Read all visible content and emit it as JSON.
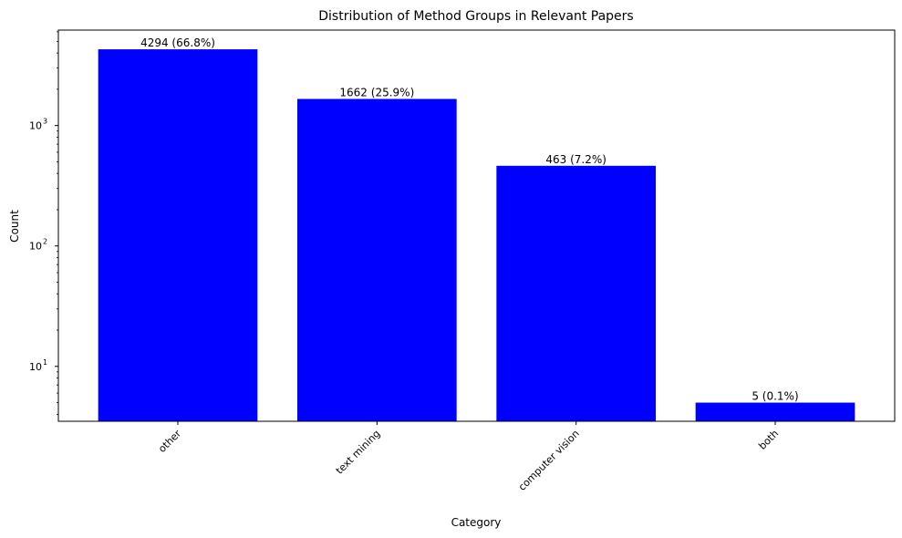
{
  "chart_data": {
    "type": "bar",
    "title": "Distribution of Method Groups in Relevant Papers",
    "xlabel": "Category",
    "ylabel": "Count",
    "yscale": "log",
    "ylim": [
      3.5,
      6200
    ],
    "categories": [
      "other",
      "text mining",
      "computer vision",
      "both"
    ],
    "values": [
      4294,
      1662,
      463,
      5
    ],
    "value_labels": [
      "4294 (66.8%)",
      "1662 (25.9%)",
      "463 (7.2%)",
      "5 (0.1%)"
    ],
    "yticks": [
      {
        "value": 10,
        "base": "10",
        "exp": "1"
      },
      {
        "value": 100,
        "base": "10",
        "exp": "2"
      },
      {
        "value": 1000,
        "base": "10",
        "exp": "3"
      }
    ],
    "bar_color": "#0000ff",
    "grid": false,
    "xtick_rotation": 45
  }
}
